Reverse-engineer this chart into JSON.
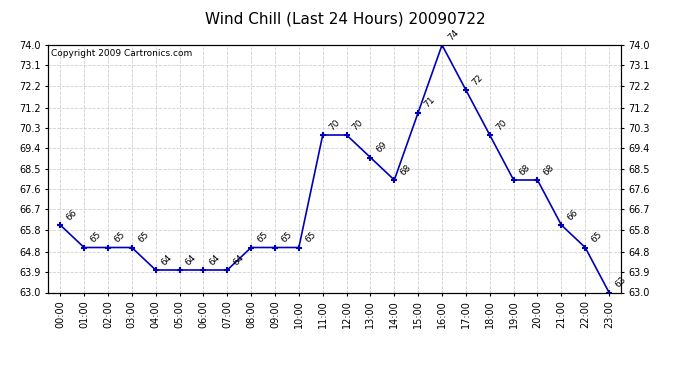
{
  "title": "Wind Chill (Last 24 Hours) 20090722",
  "copyright": "Copyright 2009 Cartronics.com",
  "hours": [
    "00:00",
    "01:00",
    "02:00",
    "03:00",
    "04:00",
    "05:00",
    "06:00",
    "07:00",
    "08:00",
    "09:00",
    "10:00",
    "11:00",
    "12:00",
    "13:00",
    "14:00",
    "15:00",
    "16:00",
    "17:00",
    "18:00",
    "19:00",
    "20:00",
    "21:00",
    "22:00",
    "23:00"
  ],
  "values": [
    66,
    65,
    65,
    65,
    64,
    64,
    64,
    64,
    65,
    65,
    65,
    70,
    70,
    69,
    68,
    71,
    74,
    72,
    70,
    68,
    68,
    66,
    65,
    63
  ],
  "ylim_min": 63.0,
  "ylim_max": 74.0,
  "yticks": [
    63.0,
    63.9,
    64.8,
    65.8,
    66.7,
    67.6,
    68.5,
    69.4,
    70.3,
    71.2,
    72.2,
    73.1,
    74.0
  ],
  "line_color": "#0000bb",
  "marker_color": "#0000bb",
  "grid_color": "#cccccc",
  "background_color": "#ffffff",
  "title_fontsize": 11,
  "annotation_fontsize": 6.5,
  "copyright_fontsize": 6.5,
  "tick_fontsize": 7,
  "ytick_fontsize": 7
}
